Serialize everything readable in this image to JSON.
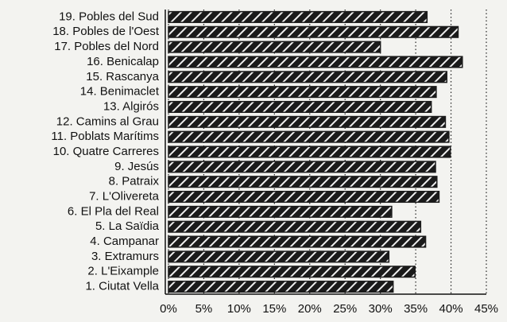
{
  "chart_data": {
    "type": "barh",
    "categories": [
      "19. Pobles del Sud",
      "18. Pobles de l'Oest",
      "17. Pobles del Nord",
      "16. Benicalap",
      "15. Rascanya",
      "14. Benimaclet",
      "13. Algirós",
      "12. Camins al Grau",
      "11. Poblats Marítims",
      "10. Quatre Carreres",
      "9. Jesús",
      "8. Patraix",
      "7. L'Olivereta",
      "6. El Pla del Real",
      "5. La Saïdia",
      "4. Campanar",
      "3. Extramurs",
      "2. L'Eixample",
      "1. Ciutat Vella"
    ],
    "values": [
      36.6,
      41.0,
      30.0,
      41.6,
      39.4,
      37.9,
      37.2,
      39.2,
      39.7,
      39.9,
      37.8,
      38.0,
      38.3,
      31.6,
      35.7,
      36.4,
      31.2,
      34.9,
      31.8
    ],
    "color": "#1a1a1a",
    "xlim": [
      0,
      45
    ],
    "xticks": [
      {
        "value": 0,
        "label": "0%"
      },
      {
        "value": 5,
        "label": "5%"
      },
      {
        "value": 10,
        "label": "10%"
      },
      {
        "value": 15,
        "label": "15%"
      },
      {
        "value": 20,
        "label": "20%"
      },
      {
        "value": 25,
        "label": "25%"
      },
      {
        "value": 30,
        "label": "30%"
      },
      {
        "value": 35,
        "label": "35%"
      },
      {
        "value": 40,
        "label": "40%"
      },
      {
        "value": 45,
        "label": "45%"
      }
    ],
    "grid": true
  }
}
